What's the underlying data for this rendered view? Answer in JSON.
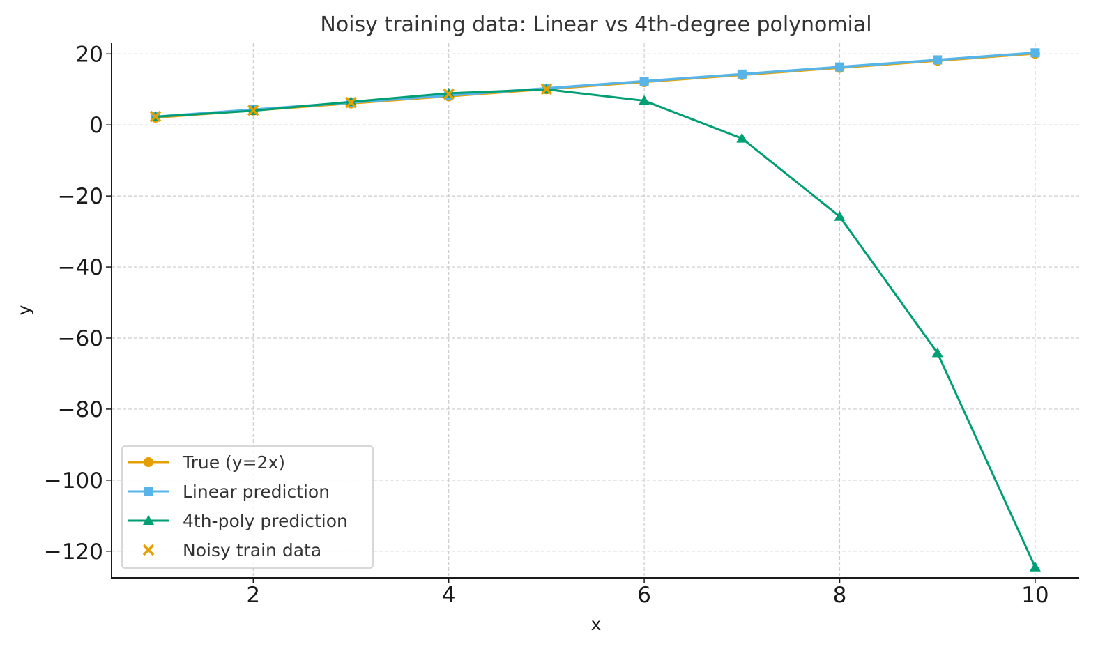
{
  "chart_data": {
    "type": "line",
    "title": "Noisy training data: Linear vs 4th-degree polynomial",
    "xlabel": "x",
    "ylabel": "y",
    "xlim": [
      0.55,
      10.45
    ],
    "ylim": [
      -127.5,
      23
    ],
    "xticks": [
      2,
      4,
      6,
      8,
      10
    ],
    "xtick_labels": [
      "2",
      "4",
      "6",
      "8",
      "10"
    ],
    "yticks": [
      20,
      0,
      -20,
      -40,
      -60,
      -80,
      -100,
      -120
    ],
    "ytick_labels": [
      "20",
      "0",
      "−20",
      "−40",
      "−60",
      "−80",
      "−100",
      "−120"
    ],
    "grid": true,
    "legend_position": "lower-left",
    "x": [
      1,
      2,
      3,
      4,
      5,
      6,
      7,
      8,
      9,
      10
    ],
    "series": [
      {
        "name": "True (y=2x)",
        "kind": "line",
        "marker": "circle",
        "color": "#E69F00",
        "values": [
          2,
          4,
          6,
          8,
          10,
          12,
          14,
          16,
          18,
          20
        ]
      },
      {
        "name": "Linear prediction",
        "kind": "line",
        "marker": "square",
        "color": "#56B4E9",
        "values": [
          2.3,
          4.3,
          6.3,
          8.3,
          10.3,
          12.3,
          14.3,
          16.3,
          18.3,
          20.3
        ]
      },
      {
        "name": "4th-poly prediction",
        "kind": "line",
        "marker": "triangle",
        "color": "#009E73",
        "values": [
          2.3,
          4.0,
          6.5,
          8.9,
          10.0,
          6.8,
          -3.8,
          -25.8,
          -64.2,
          -124.5
        ]
      },
      {
        "name": "Noisy train data",
        "kind": "scatter",
        "marker": "x",
        "color": "#E69F00",
        "x": [
          1,
          2,
          3,
          4,
          5
        ],
        "values": [
          2.4,
          4.1,
          6.3,
          8.7,
          10.1
        ]
      }
    ]
  }
}
